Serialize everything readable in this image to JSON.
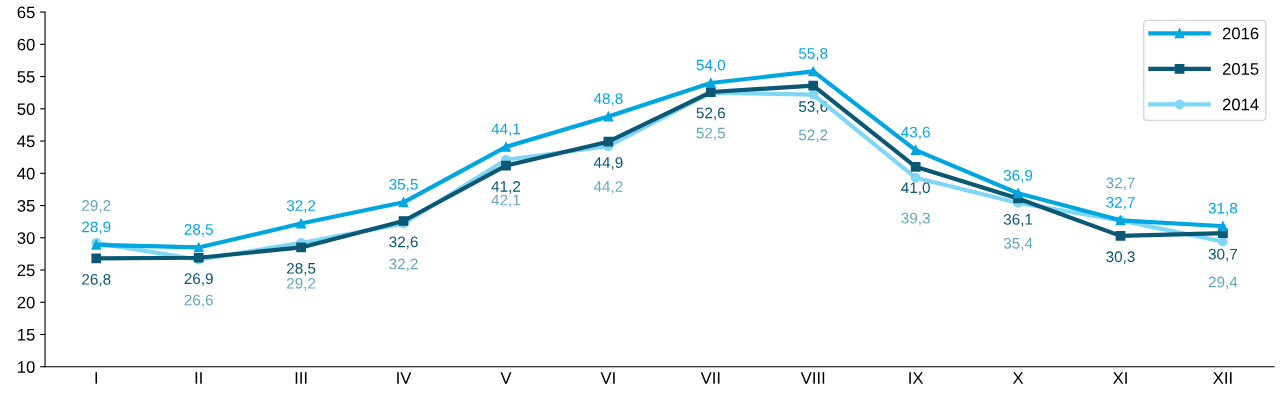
{
  "chart_data": {
    "type": "line",
    "categories": [
      "I",
      "II",
      "III",
      "IV",
      "V",
      "VI",
      "VII",
      "VIII",
      "IX",
      "X",
      "XI",
      "XII"
    ],
    "series": [
      {
        "name": "2016",
        "color": "#00a6e0",
        "marker": "triangle",
        "values": [
          28.9,
          28.5,
          32.2,
          35.5,
          44.1,
          48.8,
          54.0,
          55.8,
          43.6,
          36.9,
          32.7,
          31.8
        ],
        "value_labels": [
          "28,9",
          "28,5",
          "32,2",
          "35,5",
          "44,1",
          "48,8",
          "54,0",
          "55,8",
          "43,6",
          "36,9",
          "32,7",
          "31,8"
        ]
      },
      {
        "name": "2015",
        "color": "#0b5874",
        "marker": "square",
        "values": [
          26.8,
          26.9,
          28.5,
          32.6,
          41.2,
          44.9,
          52.6,
          53.6,
          41.0,
          36.1,
          30.3,
          30.7
        ],
        "value_labels": [
          "26,8",
          "26,9",
          "28,5",
          "32,6",
          "41,2",
          "44,9",
          "52,6",
          "53,6",
          "41,0",
          "36,1",
          "30,3",
          "30,7"
        ]
      },
      {
        "name": "2014",
        "color": "#7fd6f5",
        "marker": "circle",
        "values": [
          29.2,
          26.6,
          29.2,
          32.2,
          42.1,
          44.2,
          52.5,
          52.2,
          39.3,
          35.4,
          32.7,
          29.4
        ],
        "value_labels": [
          "29,2",
          "26,6",
          "29,2",
          "32,2",
          "42,1",
          "44,2",
          "52,5",
          "52,2",
          "39,3",
          "35,4",
          "32,7",
          "29,4"
        ]
      }
    ],
    "ylim": [
      10,
      65
    ],
    "yticks": [
      10,
      15,
      20,
      25,
      30,
      35,
      40,
      45,
      50,
      55,
      60,
      65
    ],
    "grid": false,
    "legend": "top right",
    "line_style": "solid"
  }
}
